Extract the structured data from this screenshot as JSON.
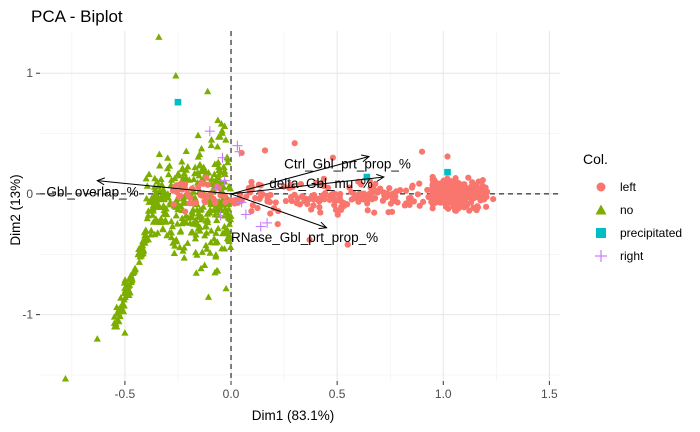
{
  "chart_data": {
    "type": "scatter",
    "title": "PCA - Biplot",
    "xlabel": "Dim1 (83.1%)",
    "ylabel": "Dim2 (13%)",
    "xlim": [
      -0.9,
      1.55
    ],
    "ylim": [
      -1.55,
      1.35
    ],
    "x_ticks": [
      -0.5,
      0.0,
      0.5,
      1.0,
      1.5
    ],
    "x_tick_labels": [
      "-0.5",
      "0.0",
      "0.5",
      "1.0",
      "1.5"
    ],
    "y_ticks": [
      -1,
      0,
      1
    ],
    "y_tick_labels": [
      "-1",
      "0",
      "1"
    ],
    "grid": true,
    "legend": {
      "title": "Col.",
      "position": "right",
      "entries": [
        {
          "label": "left",
          "color": "#F8766D",
          "shape": "circle"
        },
        {
          "label": "no",
          "color": "#7CAE00",
          "shape": "triangle"
        },
        {
          "label": "precipitated",
          "color": "#00BFC4",
          "shape": "square"
        },
        {
          "label": "right",
          "color": "#C77CFF",
          "shape": "plus"
        }
      ]
    },
    "variables": [
      {
        "name": "Gbl_overlap_%",
        "x": -0.63,
        "y": 0.11,
        "label_x": -0.87,
        "label_y": -0.02
      },
      {
        "name": "Ctrl_Gbl_prt_prop_%",
        "x": 0.65,
        "y": 0.31,
        "label_x": 0.25,
        "label_y": 0.21
      },
      {
        "name": "delta_Gbl_mu_%",
        "x": 0.72,
        "y": 0.14,
        "label_x": 0.18,
        "label_y": 0.05
      },
      {
        "name": "RNase_Gbl_prt_prop_%",
        "x": 0.45,
        "y": -0.28,
        "label_x": 0.0,
        "label_y": -0.4
      }
    ],
    "series": [
      {
        "name": "right",
        "points": [
          [
            -0.1,
            0.52
          ],
          [
            -0.07,
            0.04
          ],
          [
            -0.05,
            -0.18
          ],
          [
            -0.04,
            0.3
          ],
          [
            -0.03,
            0.11
          ],
          [
            0.03,
            0.4
          ],
          [
            0.04,
            0.35
          ],
          [
            0.05,
            -0.07
          ],
          [
            0.07,
            -0.17
          ],
          [
            0.14,
            -0.27
          ],
          [
            0.17,
            -0.24
          ]
        ]
      },
      {
        "name": "precipitated",
        "points": [
          [
            -0.25,
            0.76
          ],
          [
            0.64,
            0.14
          ],
          [
            1.02,
            0.18
          ]
        ]
      }
    ]
  }
}
